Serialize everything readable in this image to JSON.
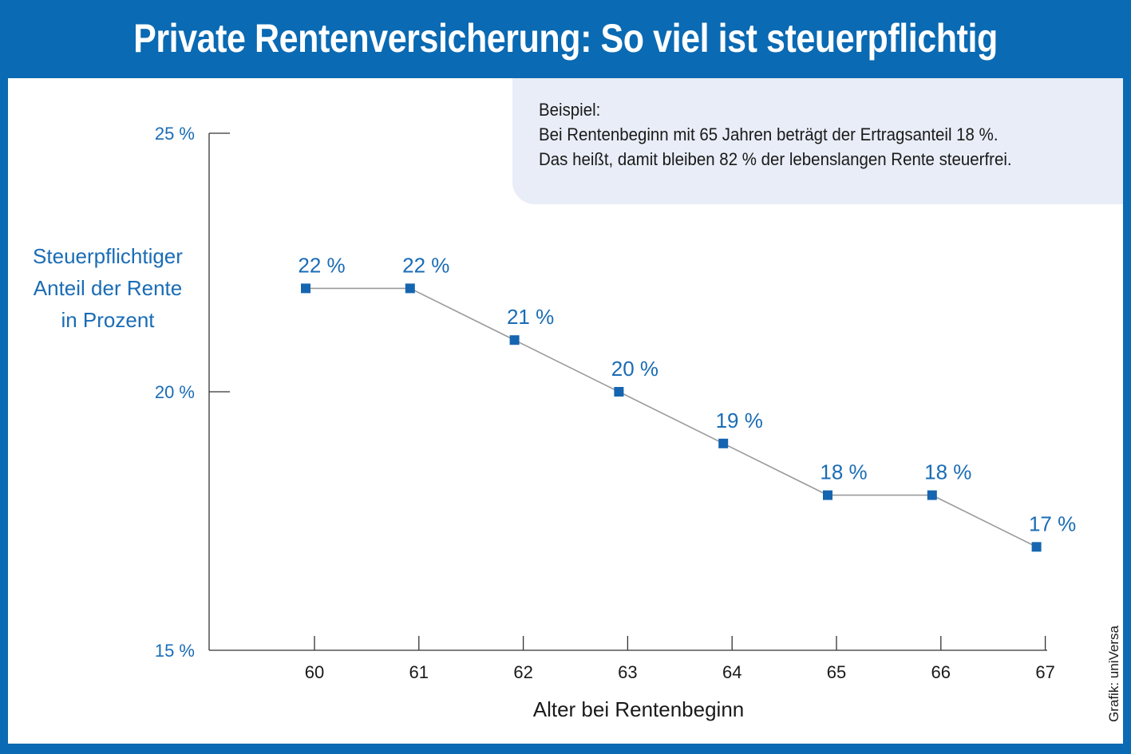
{
  "title": "Private Rentenversicherung: So viel ist steuerpflichtig",
  "note": {
    "lines": [
      "Beispiel:",
      "Bei Rentenbeginn mit 65 Jahren beträgt der Ertragsanteil 18 %.",
      "Das heißt, damit bleiben 82 % der lebenslangen Rente steuerfrei."
    ]
  },
  "credit": "Grafik: uniVersa",
  "colors": {
    "frame": "#0a6ab3",
    "marker": "#1565b0",
    "label": "#1a6cb5",
    "line": "#9a9a9a",
    "axis": "#333333",
    "note_bg": "#e8edf7"
  },
  "chart_data": {
    "type": "line",
    "title": "Private Rentenversicherung: So viel ist steuerpflichtig",
    "xlabel": "Alter bei Rentenbeginn",
    "ylabel": [
      "Steuerpflichtiger",
      "Anteil der Rente",
      "in Prozent"
    ],
    "x": [
      60,
      61,
      62,
      63,
      64,
      65,
      66,
      67
    ],
    "values": [
      22,
      22,
      21,
      20,
      19,
      18,
      18,
      17
    ],
    "data_labels": [
      "22 %",
      "22 %",
      "21 %",
      "20 %",
      "19 %",
      "18 %",
      "18 %",
      "17 %"
    ],
    "x_tick_labels": [
      "60",
      "61",
      "62",
      "63",
      "64",
      "65",
      "66",
      "67"
    ],
    "y_ticks": [
      25,
      20,
      15
    ],
    "y_tick_labels": [
      "25 %",
      "20 %",
      "15 %"
    ],
    "ylim": [
      15,
      25
    ],
    "grid": false,
    "legend": "none"
  }
}
